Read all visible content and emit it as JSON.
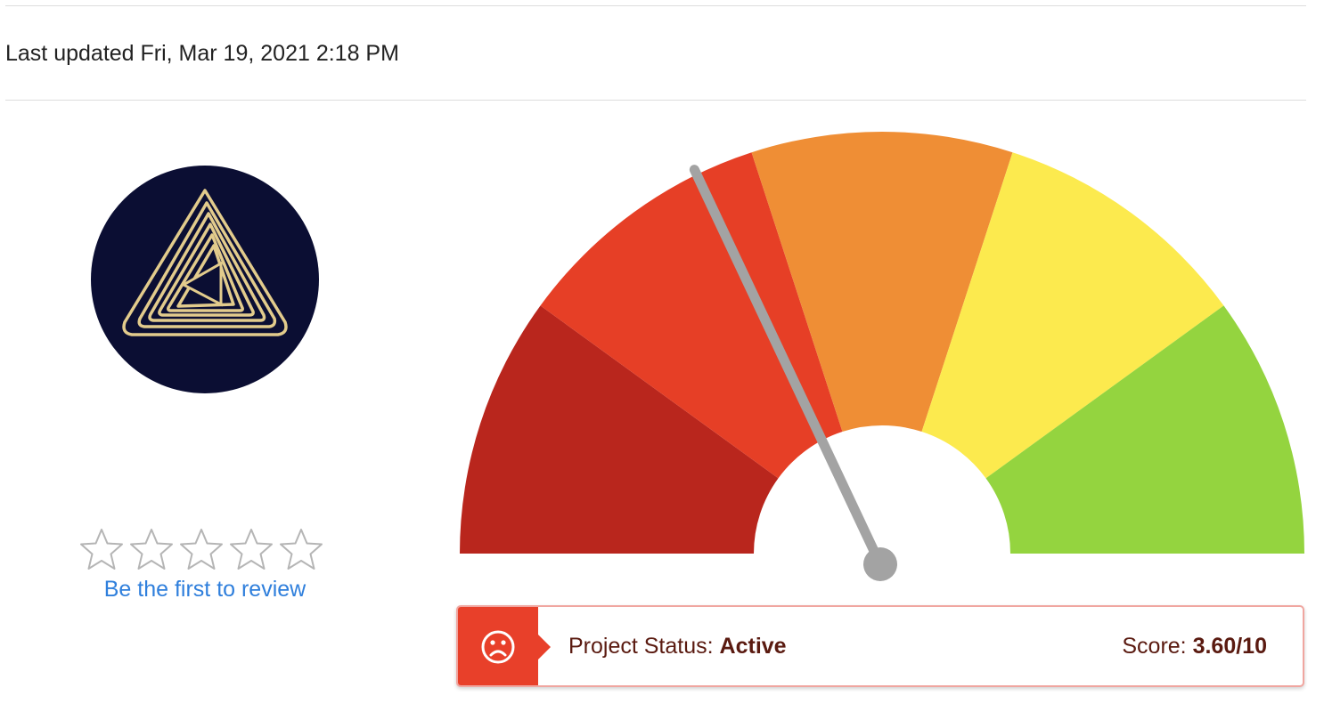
{
  "header": {
    "last_updated": "Last updated Fri, Mar 19, 2021 2:18 PM"
  },
  "logo": {
    "icon": "gold-triangle-logo",
    "background": "#0b0e33",
    "accent": "#e2cb8c"
  },
  "rating": {
    "stars_total": 5,
    "stars_filled": 0,
    "star_icon": "star-outline-icon",
    "review_link": "Be the first to review",
    "link_color": "#2f7fdc"
  },
  "gauge": {
    "value": 3.6,
    "max": 10,
    "needle_color": "#a3a3a3",
    "segments": [
      {
        "color": "#b9261d"
      },
      {
        "color": "#e63f26"
      },
      {
        "color": "#ef8e35"
      },
      {
        "color": "#fcea4e"
      },
      {
        "color": "#94d43f"
      }
    ]
  },
  "status": {
    "icon": "frown-face-icon",
    "label": "Project Status: ",
    "value": "Active",
    "score_label": "Score: ",
    "score_value": "3.60/10",
    "accent": "#e8402a"
  }
}
